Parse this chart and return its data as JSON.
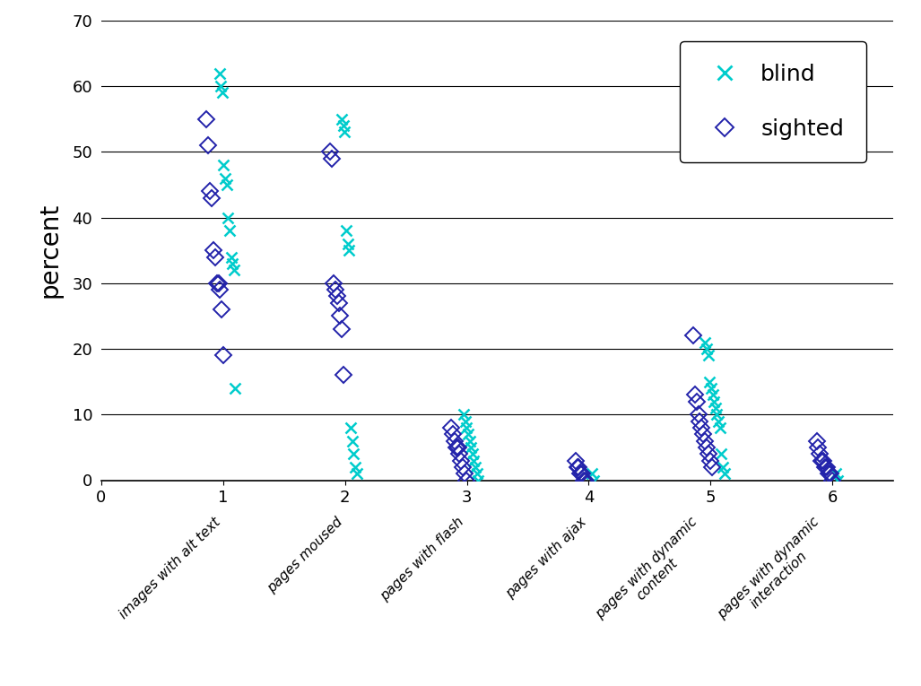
{
  "title": "",
  "ylabel": "percent",
  "xlabel": "",
  "xlim": [
    0,
    6.5
  ],
  "ylim": [
    0,
    70
  ],
  "yticks": [
    0,
    10,
    20,
    30,
    40,
    50,
    60,
    70
  ],
  "xticks": [
    0,
    1,
    2,
    3,
    4,
    5,
    6
  ],
  "category_labels": [
    "images with alt text",
    "pages moused",
    "pages with flash",
    "pages with ajax",
    "pages with dynamic\ncontent",
    "pages with dynamic\ninteraction"
  ],
  "blind_color": "#00CCCC",
  "sighted_color": "#2222AA",
  "blind_data": {
    "1": [
      62,
      60,
      59,
      48,
      46,
      45,
      40,
      38,
      34,
      33,
      32,
      14
    ],
    "2": [
      55,
      54,
      53,
      38,
      36,
      35,
      8,
      6,
      4,
      2,
      1
    ],
    "3": [
      10,
      9,
      8,
      7,
      6,
      5,
      4,
      3,
      2,
      1,
      0
    ],
    "4": [
      1,
      0
    ],
    "5": [
      21,
      20,
      19,
      15,
      14,
      13,
      12,
      11,
      10,
      9,
      8,
      4,
      2,
      1
    ],
    "6": [
      1,
      0
    ]
  },
  "sighted_data": {
    "1": [
      55,
      51,
      44,
      43,
      35,
      34,
      30,
      30,
      29,
      26,
      19
    ],
    "2": [
      50,
      49,
      30,
      29,
      28,
      27,
      25,
      23,
      16
    ],
    "3": [
      8,
      7,
      6,
      5,
      5,
      4,
      3,
      2,
      1,
      0
    ],
    "4": [
      3,
      2,
      2,
      1,
      1,
      0,
      0
    ],
    "5": [
      22,
      13,
      12,
      10,
      9,
      8,
      7,
      6,
      5,
      4,
      3,
      2
    ],
    "6": [
      6,
      5,
      4,
      3,
      3,
      2,
      2,
      1,
      1,
      0
    ]
  },
  "background_color": "#FFFFFF"
}
